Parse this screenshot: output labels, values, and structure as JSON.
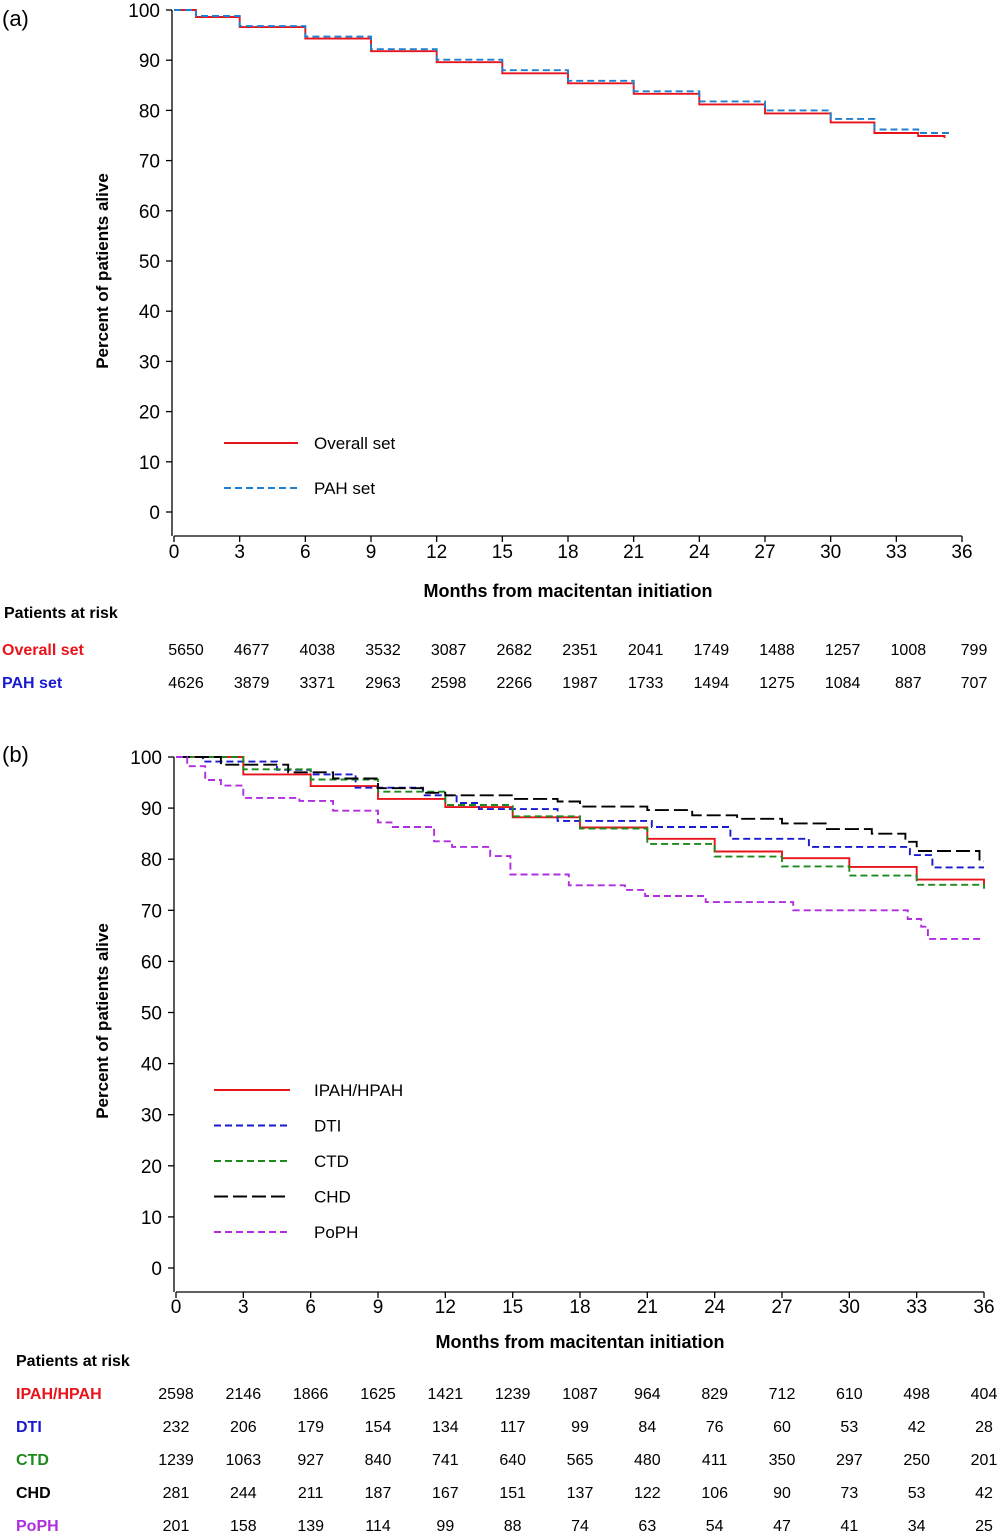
{
  "chart_data": [
    {
      "panel_label": "(a)",
      "type": "line",
      "xlabel": "Months from macitentan initiation",
      "ylabel": "Percent of patients alive",
      "xlim": [
        0,
        36
      ],
      "ylim": [
        0,
        100
      ],
      "xticks": [
        0,
        3,
        6,
        9,
        12,
        15,
        18,
        21,
        24,
        27,
        30,
        33,
        36
      ],
      "yticks": [
        0,
        10,
        20,
        30,
        40,
        50,
        60,
        70,
        80,
        90,
        100
      ],
      "legend_position": "bottom-left",
      "series": [
        {
          "name": "Overall set",
          "color": "#e8141c",
          "dash": "solid",
          "points": [
            [
              0,
              100
            ],
            [
              1,
              98.6
            ],
            [
              3,
              96.6
            ],
            [
              6,
              94.3
            ],
            [
              9,
              91.8
            ],
            [
              12,
              89.6
            ],
            [
              15,
              87.4
            ],
            [
              18,
              85.4
            ],
            [
              21,
              83.3
            ],
            [
              24,
              81.2
            ],
            [
              27,
              79.4
            ],
            [
              30,
              77.6
            ],
            [
              32,
              75.5
            ],
            [
              34,
              74.9
            ],
            [
              35.2,
              74.5
            ]
          ]
        },
        {
          "name": "PAH set",
          "color": "#1f7fd0",
          "dash": "dashed",
          "points": [
            [
              0,
              100
            ],
            [
              1,
              98.8
            ],
            [
              3,
              96.8
            ],
            [
              6,
              94.7
            ],
            [
              9,
              92.2
            ],
            [
              12,
              90.1
            ],
            [
              15,
              88.0
            ],
            [
              18,
              85.9
            ],
            [
              21,
              83.8
            ],
            [
              24,
              81.8
            ],
            [
              27,
              80.0
            ],
            [
              30,
              78.3
            ],
            [
              32,
              76.2
            ],
            [
              34,
              75.5
            ],
            [
              35.5,
              75.1
            ]
          ]
        }
      ],
      "risk_table": {
        "title": "Patients at risk",
        "rows": [
          {
            "label": "Overall set",
            "color": "#e8141c",
            "values": [
              5650,
              4677,
              4038,
              3532,
              3087,
              2682,
              2351,
              2041,
              1749,
              1488,
              1257,
              1008,
              799
            ]
          },
          {
            "label": "PAH set",
            "color": "#1a1ad0",
            "values": [
              4626,
              3879,
              3371,
              2963,
              2598,
              2266,
              1987,
              1733,
              1494,
              1275,
              1084,
              887,
              707
            ]
          }
        ]
      }
    },
    {
      "panel_label": "(b)",
      "type": "line",
      "xlabel": "Months from macitentan initiation",
      "ylabel": "Percent of patients alive",
      "xlim": [
        0,
        36
      ],
      "ylim": [
        0,
        100
      ],
      "xticks": [
        0,
        3,
        6,
        9,
        12,
        15,
        18,
        21,
        24,
        27,
        30,
        33,
        36
      ],
      "yticks": [
        0,
        10,
        20,
        30,
        40,
        50,
        60,
        70,
        80,
        90,
        100
      ],
      "legend_position": "bottom-left",
      "series": [
        {
          "name": "IPAH/HPAH",
          "color": "#e8141c",
          "dash": "solid",
          "points": [
            [
              0,
              100
            ],
            [
              3,
              96.6
            ],
            [
              6,
              94.3
            ],
            [
              9,
              91.8
            ],
            [
              12,
              90.2
            ],
            [
              15,
              88.2
            ],
            [
              18,
              86.2
            ],
            [
              21,
              84.0
            ],
            [
              24,
              81.5
            ],
            [
              27,
              80.2
            ],
            [
              30,
              78.5
            ],
            [
              33,
              76.0
            ],
            [
              36,
              75.0
            ]
          ]
        },
        {
          "name": "DTI",
          "color": "#1a1ad0",
          "dash": "dashed",
          "points": [
            [
              0,
              100
            ],
            [
              1.2,
              99.1
            ],
            [
              3,
              99.1
            ],
            [
              4.5,
              97.5
            ],
            [
              6,
              96.6
            ],
            [
              8,
              94.0
            ],
            [
              11,
              92.5
            ],
            [
              12.5,
              91.0
            ],
            [
              13.5,
              89.8
            ],
            [
              17,
              87.5
            ],
            [
              21,
              87.5
            ],
            [
              21.2,
              86.3
            ],
            [
              24.5,
              86.3
            ],
            [
              24.7,
              84.0
            ],
            [
              28,
              84.0
            ],
            [
              28.2,
              82.4
            ],
            [
              32.5,
              82.4
            ],
            [
              32.7,
              80.8
            ],
            [
              33.5,
              80.8
            ],
            [
              33.7,
              78.4
            ],
            [
              36,
              78.4
            ]
          ]
        },
        {
          "name": "CTD",
          "color": "#1e8a1e",
          "dash": "dashed",
          "points": [
            [
              0,
              100
            ],
            [
              3,
              97.6
            ],
            [
              6,
              95.6
            ],
            [
              9,
              93.2
            ],
            [
              12,
              90.6
            ],
            [
              15,
              88.4
            ],
            [
              18,
              86.0
            ],
            [
              21,
              83.0
            ],
            [
              24,
              80.5
            ],
            [
              27,
              78.6
            ],
            [
              30,
              76.8
            ],
            [
              33,
              75.0
            ],
            [
              36,
              74.2
            ]
          ]
        },
        {
          "name": "CHD",
          "color": "#000000",
          "dash": "longdash",
          "points": [
            [
              0,
              100
            ],
            [
              2,
              98.5
            ],
            [
              5,
              97.0
            ],
            [
              7,
              95.8
            ],
            [
              9,
              93.9
            ],
            [
              11,
              93.0
            ],
            [
              12,
              92.5
            ],
            [
              15,
              91.8
            ],
            [
              17,
              91.3
            ],
            [
              18,
              90.3
            ],
            [
              21,
              89.6
            ],
            [
              23,
              88.6
            ],
            [
              25,
              87.9
            ],
            [
              27,
              87.0
            ],
            [
              29,
              85.9
            ],
            [
              31,
              85.0
            ],
            [
              32.5,
              83.4
            ],
            [
              33,
              81.6
            ],
            [
              35.5,
              81.6
            ],
            [
              35.8,
              79.6
            ],
            [
              36,
              79.6
            ]
          ]
        },
        {
          "name": "PoPH",
          "color": "#b02ee0",
          "dash": "dashed",
          "points": [
            [
              0,
              100
            ],
            [
              0.5,
              98.2
            ],
            [
              1.3,
              95.5
            ],
            [
              2,
              94.4
            ],
            [
              3,
              92.0
            ],
            [
              5.5,
              91.4
            ],
            [
              7,
              89.5
            ],
            [
              8.5,
              89.5
            ],
            [
              9,
              87.2
            ],
            [
              9.6,
              86.3
            ],
            [
              11,
              86.3
            ],
            [
              11.5,
              83.5
            ],
            [
              12.3,
              82.4
            ],
            [
              13.8,
              82.4
            ],
            [
              14,
              80.6
            ],
            [
              14.9,
              77.0
            ],
            [
              17.2,
              77.0
            ],
            [
              17.5,
              74.9
            ],
            [
              19.6,
              74.9
            ],
            [
              20,
              74.0
            ],
            [
              20.9,
              72.8
            ],
            [
              23.3,
              72.8
            ],
            [
              23.6,
              71.6
            ],
            [
              27.3,
              71.6
            ],
            [
              27.5,
              70.0
            ],
            [
              32.3,
              70.0
            ],
            [
              32.6,
              68.3
            ],
            [
              33.2,
              66.8
            ],
            [
              33.5,
              64.4
            ],
            [
              36,
              64.4
            ]
          ]
        }
      ],
      "risk_table": {
        "title": "Patients at risk",
        "rows": [
          {
            "label": "IPAH/HPAH",
            "color": "#e8141c",
            "values": [
              2598,
              2146,
              1866,
              1625,
              1421,
              1239,
              1087,
              964,
              829,
              712,
              610,
              498,
              404
            ]
          },
          {
            "label": "DTI",
            "color": "#1a1ad0",
            "values": [
              232,
              206,
              179,
              154,
              134,
              117,
              99,
              84,
              76,
              60,
              53,
              42,
              28
            ]
          },
          {
            "label": "CTD",
            "color": "#1e8a1e",
            "values": [
              1239,
              1063,
              927,
              840,
              741,
              640,
              565,
              480,
              411,
              350,
              297,
              250,
              201
            ]
          },
          {
            "label": "CHD",
            "color": "#000000",
            "values": [
              281,
              244,
              211,
              187,
              167,
              151,
              137,
              122,
              106,
              90,
              73,
              53,
              42
            ]
          },
          {
            "label": "PoPH",
            "color": "#b02ee0",
            "values": [
              201,
              158,
              139,
              114,
              99,
              88,
              74,
              63,
              54,
              47,
              41,
              34,
              25
            ]
          }
        ]
      }
    }
  ]
}
